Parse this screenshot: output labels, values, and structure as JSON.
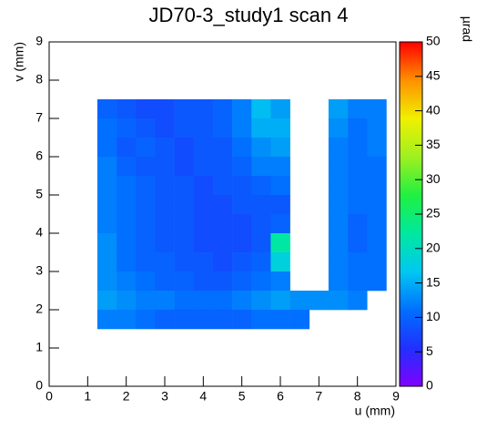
{
  "chart_data": {
    "type": "heatmap",
    "title": "JD70-3_study1 scan 4",
    "x_label": "u (mm)",
    "y_label": "v (mm)",
    "z_label": "µrad",
    "x": [
      1.5,
      2.0,
      2.5,
      3.0,
      3.5,
      4.0,
      4.5,
      5.0,
      5.5,
      6.0,
      6.5,
      7.0,
      7.5,
      8.0,
      8.5
    ],
    "y": [
      7.25,
      6.75,
      6.25,
      5.75,
      5.25,
      4.75,
      4.25,
      3.75,
      3.25,
      2.75,
      2.25,
      1.75
    ],
    "z": [
      [
        10,
        9,
        8,
        8,
        9,
        9,
        10,
        12,
        16,
        14,
        null,
        null,
        14,
        12,
        12
      ],
      [
        11,
        10,
        9,
        8,
        9,
        9,
        10,
        12,
        15,
        15,
        null,
        null,
        13,
        11,
        12
      ],
      [
        11,
        9,
        10,
        9,
        8,
        9,
        9,
        11,
        13,
        14,
        null,
        null,
        12,
        11,
        12
      ],
      [
        12,
        10,
        9,
        9,
        8,
        9,
        9,
        10,
        12,
        12,
        null,
        null,
        12,
        11,
        11
      ],
      [
        12,
        11,
        10,
        9,
        9,
        8,
        9,
        9,
        10,
        11,
        null,
        null,
        12,
        11,
        11
      ],
      [
        12,
        11,
        10,
        9,
        9,
        8,
        8,
        9,
        9,
        9,
        null,
        null,
        12,
        11,
        11
      ],
      [
        12,
        11,
        10,
        9,
        9,
        8,
        8,
        8,
        9,
        10,
        null,
        null,
        12,
        10,
        11
      ],
      [
        13,
        11,
        10,
        9,
        9,
        8,
        8,
        8,
        9,
        22,
        null,
        null,
        12,
        10,
        11
      ],
      [
        13,
        11,
        10,
        10,
        9,
        9,
        8,
        9,
        10,
        18,
        null,
        null,
        12,
        11,
        11
      ],
      [
        13,
        12,
        11,
        10,
        10,
        9,
        9,
        10,
        11,
        12,
        null,
        null,
        12,
        11,
        11
      ],
      [
        14,
        13,
        12,
        12,
        11,
        11,
        11,
        12,
        13,
        14,
        13,
        13,
        13,
        12,
        null
      ],
      [
        12,
        12,
        11,
        10,
        10,
        10,
        10,
        10,
        11,
        11,
        11,
        null,
        null,
        null,
        null
      ]
    ],
    "xlim": [
      0,
      9
    ],
    "xticks": [
      0,
      1,
      2,
      3,
      4,
      5,
      6,
      7,
      8,
      9
    ],
    "ylim": [
      0,
      9
    ],
    "yticks": [
      0,
      1,
      2,
      3,
      4,
      5,
      6,
      7,
      8,
      9
    ],
    "zlim": [
      0,
      50
    ],
    "zticks": [
      0,
      5,
      10,
      15,
      20,
      25,
      30,
      35,
      40,
      45,
      50
    ],
    "colorscale": [
      "#8000ff",
      "#2030ff",
      "#0070ff",
      "#00c8f0",
      "#00e8a0",
      "#20f040",
      "#a0f020",
      "#f0f000",
      "#ff9000",
      "#ff0000"
    ]
  }
}
